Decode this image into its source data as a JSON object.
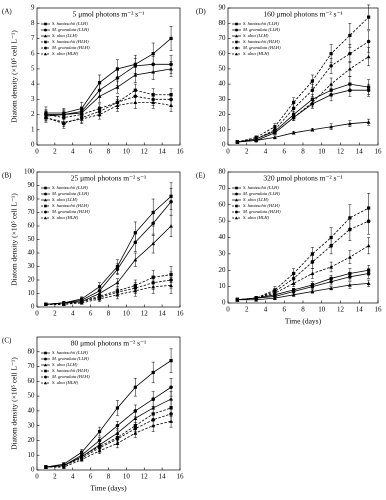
{
  "chart_data": [
    {
      "type": "line",
      "panel_label": "(A)",
      "title": "5 μmol photons m⁻² s⁻¹",
      "ylabel": "Diatom density (×10⁵ cell L⁻¹)",
      "x": [
        1,
        3,
        5,
        7,
        9,
        11,
        13,
        15
      ],
      "xlim": [
        0,
        16
      ],
      "xticks": [
        0,
        2,
        4,
        6,
        8,
        10,
        12,
        14,
        16
      ],
      "ylim": [
        0,
        9
      ],
      "yticks": [
        0,
        1,
        2,
        3,
        4,
        5,
        6,
        7,
        8,
        9
      ],
      "series": [
        {
          "name": "S. hantzschii (LLH)",
          "color": "#000000",
          "marker": "square",
          "dashed": false,
          "values": [
            2.1,
            2.1,
            2.4,
            4.1,
            5.0,
            5.3,
            6.0,
            7.0
          ],
          "errors": [
            0.4,
            0.3,
            0.4,
            0.5,
            0.6,
            0.6,
            0.7,
            0.8
          ]
        },
        {
          "name": "M. granulata (LLH)",
          "color": "#000000",
          "marker": "circle",
          "dashed": false,
          "values": [
            2.0,
            2.0,
            2.2,
            3.6,
            4.4,
            5.2,
            5.3,
            5.3
          ],
          "errors": [
            0.3,
            0.3,
            0.3,
            0.4,
            0.5,
            0.5,
            0.5,
            0.6
          ]
        },
        {
          "name": "S. ulna (LLH)",
          "color": "#000000",
          "marker": "triangle",
          "dashed": false,
          "values": [
            1.9,
            2.0,
            2.1,
            3.2,
            3.8,
            4.6,
            4.8,
            5.0
          ],
          "errors": [
            0.3,
            0.3,
            0.3,
            0.4,
            0.4,
            0.5,
            0.5,
            0.5
          ]
        },
        {
          "name": "S. hantzschii (HLH)",
          "color": "#000000",
          "marker": "square",
          "dashed": true,
          "values": [
            2.0,
            1.8,
            2.0,
            2.4,
            2.8,
            3.6,
            3.3,
            3.3
          ],
          "errors": [
            0.3,
            0.3,
            0.3,
            0.3,
            0.4,
            0.4,
            0.4,
            0.4
          ]
        },
        {
          "name": "M. granulata (HLH)",
          "color": "#000000",
          "marker": "circle",
          "dashed": true,
          "values": [
            1.8,
            1.4,
            1.8,
            2.2,
            2.8,
            3.2,
            3.0,
            3.0
          ],
          "errors": [
            0.3,
            0.3,
            0.3,
            0.3,
            0.4,
            0.4,
            0.4,
            0.4
          ]
        },
        {
          "name": "S. ulna (HLH)",
          "color": "#000000",
          "marker": "triangle",
          "dashed": true,
          "values": [
            1.8,
            1.5,
            1.7,
            2.0,
            2.6,
            2.8,
            2.8,
            2.6
          ],
          "errors": [
            0.3,
            0.3,
            0.3,
            0.3,
            0.4,
            0.4,
            0.4,
            0.4
          ]
        }
      ]
    },
    {
      "type": "line",
      "panel_label": "(B)",
      "title": "25 μmol photons m⁻² s⁻¹",
      "ylabel": "Diatom density (×10⁵ cell L⁻¹)",
      "x": [
        1,
        3,
        5,
        7,
        9,
        11,
        13,
        15
      ],
      "xlim": [
        0,
        16
      ],
      "xticks": [
        0,
        2,
        4,
        6,
        8,
        10,
        12,
        14,
        16
      ],
      "ylim": [
        0,
        100
      ],
      "yticks": [
        0,
        10,
        20,
        30,
        40,
        50,
        60,
        70,
        80,
        90,
        100
      ],
      "series": [
        {
          "name": "S. hantzschii (LLH)",
          "color": "#000000",
          "marker": "square",
          "dashed": false,
          "values": [
            2,
            3,
            6,
            15,
            30,
            55,
            70,
            82
          ],
          "errors": [
            1,
            1,
            1.5,
            3,
            5,
            8,
            10,
            10
          ]
        },
        {
          "name": "M. granulata (LLH)",
          "color": "#000000",
          "marker": "circle",
          "dashed": false,
          "values": [
            2,
            3,
            5,
            12,
            28,
            48,
            62,
            78
          ],
          "errors": [
            1,
            1,
            1,
            3,
            4,
            7,
            9,
            10
          ]
        },
        {
          "name": "S. ulna (LLH)",
          "color": "#000000",
          "marker": "triangle",
          "dashed": false,
          "values": [
            2,
            3,
            4,
            10,
            18,
            35,
            47,
            60
          ],
          "errors": [
            1,
            1,
            1,
            2,
            3,
            5,
            7,
            8
          ]
        },
        {
          "name": "S. hantzschii (HLH)",
          "color": "#000000",
          "marker": "square",
          "dashed": true,
          "values": [
            2,
            2,
            4,
            8,
            12,
            16,
            22,
            24
          ],
          "errors": [
            1,
            1,
            1,
            2,
            3,
            4,
            5,
            6
          ]
        },
        {
          "name": "M. granulata (HLH)",
          "color": "#000000",
          "marker": "circle",
          "dashed": true,
          "values": [
            2,
            2,
            4,
            7,
            11,
            14,
            18,
            20
          ],
          "errors": [
            1,
            1,
            1,
            2,
            3,
            4,
            5,
            6
          ]
        },
        {
          "name": "S. ulna (HLH)",
          "color": "#000000",
          "marker": "triangle",
          "dashed": true,
          "values": [
            2,
            2,
            3,
            6,
            9,
            12,
            15,
            16
          ],
          "errors": [
            1,
            1,
            1,
            2,
            3,
            4,
            5,
            6
          ]
        }
      ]
    },
    {
      "type": "line",
      "panel_label": "(C)",
      "title": "80 μmol photons m⁻² s⁻¹",
      "ylabel": "Diatom density (×10⁵ cell L⁻¹)",
      "xlabel": "Time (days)",
      "x": [
        1,
        3,
        5,
        7,
        9,
        11,
        13,
        15
      ],
      "xlim": [
        0,
        16
      ],
      "xticks": [
        0,
        2,
        4,
        6,
        8,
        10,
        12,
        14,
        16
      ],
      "ylim": [
        0,
        90
      ],
      "yticks": [
        0,
        10,
        20,
        30,
        40,
        50,
        60,
        70,
        80
      ],
      "series": [
        {
          "name": "S. hantzschii (LLH)",
          "color": "#000000",
          "marker": "square",
          "dashed": false,
          "values": [
            2,
            4,
            12,
            26,
            42,
            56,
            66,
            74
          ],
          "errors": [
            1,
            1,
            2,
            3,
            5,
            6,
            7,
            8
          ]
        },
        {
          "name": "M. granulata (LLH)",
          "color": "#000000",
          "marker": "circle",
          "dashed": false,
          "values": [
            2,
            3,
            10,
            20,
            30,
            40,
            48,
            56
          ],
          "errors": [
            1,
            1,
            2,
            2,
            3,
            4,
            5,
            6
          ]
        },
        {
          "name": "S. ulna (LLH)",
          "color": "#000000",
          "marker": "triangle",
          "dashed": false,
          "values": [
            2,
            3,
            9,
            17,
            25,
            35,
            42,
            48
          ],
          "errors": [
            1,
            1,
            2,
            2,
            3,
            4,
            5,
            5
          ]
        },
        {
          "name": "S. hantzschii (HLH)",
          "color": "#000000",
          "marker": "square",
          "dashed": true,
          "values": [
            2,
            3,
            9,
            16,
            22,
            30,
            38,
            42
          ],
          "errors": [
            1,
            1,
            2,
            2,
            3,
            4,
            5,
            6
          ]
        },
        {
          "name": "M. granulata (HLH)",
          "color": "#000000",
          "marker": "circle",
          "dashed": true,
          "values": [
            2,
            3,
            8,
            15,
            21,
            28,
            34,
            38
          ],
          "errors": [
            1,
            1,
            2,
            2,
            3,
            4,
            4,
            5
          ]
        },
        {
          "name": "S. ulna (HLH)",
          "color": "#000000",
          "marker": "triangle",
          "dashed": true,
          "values": [
            2,
            2,
            7,
            13,
            18,
            25,
            30,
            33
          ],
          "errors": [
            1,
            1,
            1,
            2,
            3,
            3,
            4,
            4
          ]
        }
      ]
    },
    {
      "type": "line",
      "panel_label": "(D)",
      "title": "160 μmol photons m⁻² s⁻¹",
      "x": [
        1,
        3,
        5,
        7,
        9,
        11,
        13,
        15
      ],
      "xlim": [
        0,
        16
      ],
      "xticks": [
        0,
        2,
        4,
        6,
        8,
        10,
        12,
        14,
        16
      ],
      "ylim": [
        0,
        90
      ],
      "yticks": [
        0,
        10,
        20,
        30,
        40,
        50,
        60,
        70,
        80,
        90
      ],
      "series": [
        {
          "name": "S. hantzschii (LLH)",
          "color": "#000000",
          "marker": "square",
          "dashed": false,
          "values": [
            2,
            4,
            9,
            20,
            30,
            36,
            40,
            38
          ],
          "errors": [
            1,
            1,
            1,
            2,
            3,
            4,
            5,
            5
          ]
        },
        {
          "name": "M. granulata (LLH)",
          "color": "#000000",
          "marker": "circle",
          "dashed": false,
          "values": [
            2,
            3,
            8,
            18,
            27,
            33,
            36,
            36
          ],
          "errors": [
            1,
            1,
            1,
            2,
            3,
            4,
            4,
            4
          ]
        },
        {
          "name": "S. ulna (LLH)",
          "color": "#000000",
          "marker": "triangle",
          "dashed": false,
          "values": [
            2,
            3,
            5,
            8,
            10,
            12,
            14,
            15
          ],
          "errors": [
            1,
            1,
            1,
            1,
            1,
            2,
            2,
            2
          ]
        },
        {
          "name": "S. hantzschii (HLH)",
          "color": "#000000",
          "marker": "square",
          "dashed": true,
          "values": [
            2,
            5,
            12,
            28,
            42,
            60,
            72,
            84
          ],
          "errors": [
            1,
            1,
            2,
            3,
            4,
            6,
            8,
            8
          ]
        },
        {
          "name": "M. granulata (HLH)",
          "color": "#000000",
          "marker": "circle",
          "dashed": true,
          "values": [
            2,
            4,
            10,
            24,
            36,
            52,
            60,
            68
          ],
          "errors": [
            1,
            1,
            2,
            3,
            4,
            5,
            6,
            7
          ]
        },
        {
          "name": "S. ulna (HLH)",
          "color": "#000000",
          "marker": "triangle",
          "dashed": true,
          "values": [
            2,
            3,
            8,
            18,
            28,
            40,
            50,
            58
          ],
          "errors": [
            1,
            1,
            1,
            2,
            3,
            4,
            5,
            6
          ]
        }
      ]
    },
    {
      "type": "line",
      "panel_label": "(E)",
      "title": "320 μmol photons m⁻² s⁻¹",
      "xlabel": "Time (days)",
      "x": [
        1,
        3,
        5,
        7,
        9,
        11,
        13,
        15
      ],
      "xlim": [
        0,
        16
      ],
      "xticks": [
        0,
        2,
        4,
        6,
        8,
        10,
        12,
        14,
        16
      ],
      "ylim": [
        0,
        80
      ],
      "yticks": [
        0,
        10,
        20,
        30,
        40,
        50,
        60,
        70,
        80
      ],
      "series": [
        {
          "name": "S. hantzschii (LLH)",
          "color": "#000000",
          "marker": "square",
          "dashed": false,
          "values": [
            2,
            3,
            5,
            8,
            11,
            15,
            18,
            20
          ],
          "errors": [
            1,
            1,
            1,
            1,
            2,
            2,
            3,
            3
          ]
        },
        {
          "name": "M. granulata (LLH)",
          "color": "#000000",
          "marker": "circle",
          "dashed": false,
          "values": [
            2,
            3,
            4,
            7,
            10,
            13,
            16,
            18
          ],
          "errors": [
            1,
            1,
            1,
            1,
            2,
            2,
            2,
            3
          ]
        },
        {
          "name": "S. ulna (LLH)",
          "color": "#000000",
          "marker": "triangle",
          "dashed": false,
          "values": [
            2,
            2,
            3,
            5,
            7,
            9,
            11,
            12
          ],
          "errors": [
            1,
            1,
            1,
            1,
            1,
            1,
            2,
            2
          ]
        },
        {
          "name": "S. hantzschii (HLH)",
          "color": "#000000",
          "marker": "square",
          "dashed": true,
          "values": [
            2,
            3,
            8,
            18,
            30,
            40,
            52,
            58
          ],
          "errors": [
            1,
            1,
            2,
            3,
            4,
            6,
            8,
            9
          ]
        },
        {
          "name": "M. granulata (HLH)",
          "color": "#000000",
          "marker": "circle",
          "dashed": true,
          "values": [
            2,
            3,
            7,
            15,
            25,
            35,
            45,
            50
          ],
          "errors": [
            1,
            1,
            1,
            3,
            4,
            5,
            7,
            8
          ]
        },
        {
          "name": "S. ulna (HLH)",
          "color": "#000000",
          "marker": "triangle",
          "dashed": true,
          "values": [
            2,
            3,
            6,
            12,
            18,
            22,
            28,
            35
          ],
          "errors": [
            1,
            1,
            1,
            2,
            3,
            3,
            4,
            5
          ]
        }
      ]
    }
  ]
}
